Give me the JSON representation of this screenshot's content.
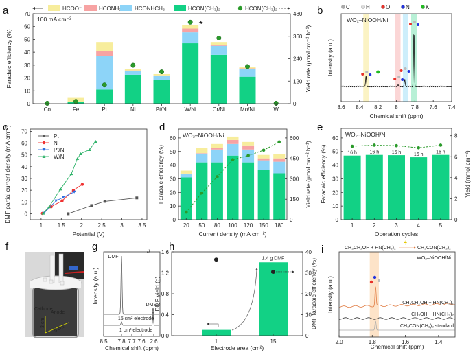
{
  "colors": {
    "dmf": "#12d185",
    "hconhch3": "#8dd4f8",
    "hconh2": "#f7a3a3",
    "hcoo": "#f7ed9c",
    "yield_point": "#2a9a2a",
    "orange": "#e07a40"
  },
  "panels": {
    "a": "a",
    "b": "b",
    "c": "c",
    "d": "d",
    "e": "e",
    "f": "f",
    "g": "g",
    "h": "h",
    "i": "i"
  },
  "chart_data": [
    {
      "panel": "a",
      "type": "bar",
      "stacked": true,
      "annotation": "100 mA cm⁻²",
      "star": "★",
      "legend": [
        "HCOO⁻",
        "HCONH₂",
        "HCONHCH₃",
        "HCON(CH₃)₂",
        "HCON(CH₃)₂"
      ],
      "categories": [
        "Co",
        "Fe",
        "Pt",
        "Ni",
        "Pt/Ni",
        "W/Ni",
        "Cr/Ni",
        "Mo/Ni",
        "W"
      ],
      "series": [
        {
          "name": "HCON(CH₃)₂",
          "values": [
            0,
            1.5,
            11,
            22.5,
            18.5,
            47,
            38,
            21,
            0
          ]
        },
        {
          "name": "HCONHCH₃",
          "values": [
            0,
            0,
            26,
            3,
            3,
            8.5,
            7,
            6,
            0
          ]
        },
        {
          "name": "HCONH₂",
          "values": [
            0,
            0,
            4,
            0.3,
            0.5,
            3,
            0.5,
            0.5,
            0
          ]
        },
        {
          "name": "HCOO⁻",
          "values": [
            0,
            3,
            7,
            1,
            1,
            2.5,
            2.5,
            1,
            0
          ]
        }
      ],
      "yield_series": {
        "name": "HCON(CH₃)₂",
        "values": [
          2,
          12,
          100,
          205,
          170,
          435,
          350,
          198,
          2
        ]
      },
      "ylabel": "Faradaic efficiency (%)",
      "y2label": "Yield rate (μmol cm⁻² h⁻¹)",
      "ylim": [
        0,
        70
      ],
      "yticks": [
        0,
        10,
        20,
        30,
        40,
        50,
        60,
        70
      ],
      "y2lim": [
        0,
        480
      ],
      "y2ticks": [
        0,
        120,
        240,
        360,
        480
      ]
    },
    {
      "panel": "b",
      "type": "line",
      "title": "WO₂–NiOOH/Ni",
      "atom_legend": [
        "C",
        "H",
        "O",
        "N",
        "K"
      ],
      "atom_colors": [
        "#aaaaaa",
        "#dddddd",
        "#e8322a",
        "#2233dd",
        "#22bb22"
      ],
      "peaks": [
        {
          "shift": 8.33,
          "height": 0.2
        },
        {
          "shift": 7.98,
          "height": 0.03
        },
        {
          "shift": 7.91,
          "height": 0.14
        },
        {
          "shift": 7.81,
          "height": 1.0
        }
      ],
      "bands": [
        {
          "shift": 8.33,
          "color": "#fbf3c4"
        },
        {
          "shift": 7.985,
          "color": "#fbd6d6"
        },
        {
          "shift": 7.9,
          "color": "#cdeefb"
        },
        {
          "shift": 7.81,
          "color": "#b8f0d6"
        }
      ],
      "xlabel": "Chemical shift (ppm)",
      "ylabel": "Intensity (a.u.)",
      "xlim": [
        8.6,
        7.4
      ],
      "xticks": [
        8.6,
        8.4,
        8.2,
        8.0,
        7.8,
        7.6,
        7.4
      ]
    },
    {
      "panel": "c",
      "type": "line",
      "series": [
        {
          "name": "Pt",
          "color": "#555555",
          "marker": "square",
          "x": [
            1.67,
            2.25,
            2.58,
            3.37
          ],
          "y": [
            0,
            7,
            10.5,
            13.5
          ]
        },
        {
          "name": "Ni",
          "color": "#f03232",
          "marker": "circle",
          "x": [
            1.03,
            1.25,
            1.52,
            1.8,
            2.02
          ],
          "y": [
            0.3,
            6,
            11,
            20,
            25
          ]
        },
        {
          "name": "Pt/Ni",
          "color": "#2f6fe0",
          "marker": "triangle-down",
          "x": [
            1.07,
            1.37,
            1.55,
            1.82
          ],
          "y": [
            0.5,
            11,
            14,
            18.5
          ]
        },
        {
          "name": "W/Ni",
          "color": "#2fb36a",
          "marker": "triangle-up",
          "x": [
            1.05,
            1.2,
            1.48,
            1.75,
            1.9,
            1.98,
            2.2,
            2.35
          ],
          "y": [
            0.5,
            6,
            21,
            34,
            47,
            51,
            54.5,
            61.5
          ]
        }
      ],
      "xlabel": "Potential (V)",
      "ylabel": "DMF partial current density (mA cm⁻²)",
      "xlim": [
        0.73,
        3.62
      ],
      "xticks": [
        1.0,
        1.5,
        2.0,
        2.5,
        3.0,
        3.5
      ],
      "ylim": [
        -5,
        72
      ],
      "yticks": [
        0,
        10,
        20,
        30,
        40,
        50,
        60,
        70
      ],
      "legend": "top-left"
    },
    {
      "panel": "d",
      "type": "bar",
      "stacked": true,
      "title": "WO₂–NiOOH/Ni",
      "categories": [
        "20",
        "50",
        "80",
        "100",
        "120",
        "150",
        "180"
      ],
      "series": [
        {
          "values": [
            31,
            42,
            42,
            47,
            42,
            36.5,
            34
          ]
        },
        {
          "values": [
            2.5,
            6.5,
            9.5,
            8.5,
            9.5,
            7,
            8.5
          ]
        },
        {
          "values": [
            0.3,
            0.3,
            1,
            3,
            3,
            1.5,
            2.5
          ]
        },
        {
          "values": [
            2.2,
            3.7,
            3,
            2.5,
            2.5,
            2.5,
            3
          ]
        }
      ],
      "yield_values": [
        55,
        195,
        315,
        440,
        470,
        510,
        570
      ],
      "xlabel": "Current density (mA cm⁻²)",
      "ylabel": "Faradaic efficiency (%)",
      "y2label": "Yield rate (μmol cm⁻² h⁻¹)",
      "ylim": [
        0,
        66.5
      ],
      "yticks": [
        0,
        10,
        20,
        30,
        40,
        50,
        60
      ],
      "y2lim": [
        0,
        665
      ],
      "y2ticks": [
        0,
        150,
        300,
        450,
        600
      ]
    },
    {
      "panel": "e",
      "type": "bar",
      "title": "WO₂–NiOOH/Ni",
      "categories": [
        "1",
        "2",
        "3",
        "4",
        "5"
      ],
      "values": [
        47,
        47.5,
        47.3,
        45.8,
        47.5
      ],
      "bar_labels": [
        "16 h",
        "16 h",
        "16 h",
        "16 h",
        "16 h"
      ],
      "yield_values": [
        7.0,
        7.1,
        7.05,
        6.85,
        7.1
      ],
      "xlabel": "Operation cycles",
      "ylabel": "Faradaic efficiency (%)",
      "y2label": "Yield (mmol cm⁻²)",
      "ylim": [
        0,
        67
      ],
      "yticks": [
        0,
        10,
        20,
        30,
        40,
        50,
        60
      ],
      "y2lim": [
        0,
        8.7
      ],
      "y2ticks": [
        0,
        2,
        4,
        6,
        8
      ]
    },
    {
      "panel": "g",
      "type": "line",
      "peak_labels": [
        "DMF",
        "DMSO"
      ],
      "trace_labels": [
        "15 cm² electrode",
        "1 cm² electrode"
      ],
      "xlabel": "Chemical shift (ppm)",
      "ylabel": "Intensity (a.u.)",
      "xticks": [
        "8.5",
        "7.8",
        "7.7",
        "7.6",
        "2.6"
      ]
    },
    {
      "panel": "h",
      "type": "bar",
      "categories": [
        "1",
        "15"
      ],
      "values": [
        0.11,
        1.4
      ],
      "fe_values": [
        36.3,
        30.5
      ],
      "bar_label": "1.4 g DMF",
      "xlabel": "Electrode area (cm²)",
      "ylabel": "DMF yield (g)",
      "y2label": "DMF faradaic efficiency (%)",
      "ylim": [
        0,
        1.6
      ],
      "yticks": [
        "0.0",
        "0.4",
        "0.8",
        "1.2",
        "1.6"
      ],
      "y2lim": [
        0,
        40
      ],
      "y2ticks": [
        0,
        10,
        20,
        30,
        40
      ]
    },
    {
      "panel": "i",
      "type": "line",
      "reaction": {
        "reactants": "CH₃CH₂OH +  HN(CH₃)₂",
        "product": "CH₃CON(CH₃)₂"
      },
      "title": "WO₂–NiOOH/Ni",
      "trace_labels": [
        "CH₃CH₂OH + HN(CH₃)₂",
        "CH₃OH + HN(CH₃)₂",
        "CH₃CON(CH₃)₂ standard"
      ],
      "trace_colors": [
        "#e07a40",
        "#333333",
        "#aaaaaa"
      ],
      "xlabel": "Chemical shift (ppm)",
      "ylabel": "Intensity (a.u.)",
      "xlim": [
        2.0,
        1.3
      ],
      "xticks": [
        "2.0",
        "1.8",
        "1.6",
        "1.4"
      ]
    }
  ],
  "photo_f": {
    "labels": [
      "Cathode",
      "Anode",
      "3 cm",
      "5 cm"
    ]
  }
}
